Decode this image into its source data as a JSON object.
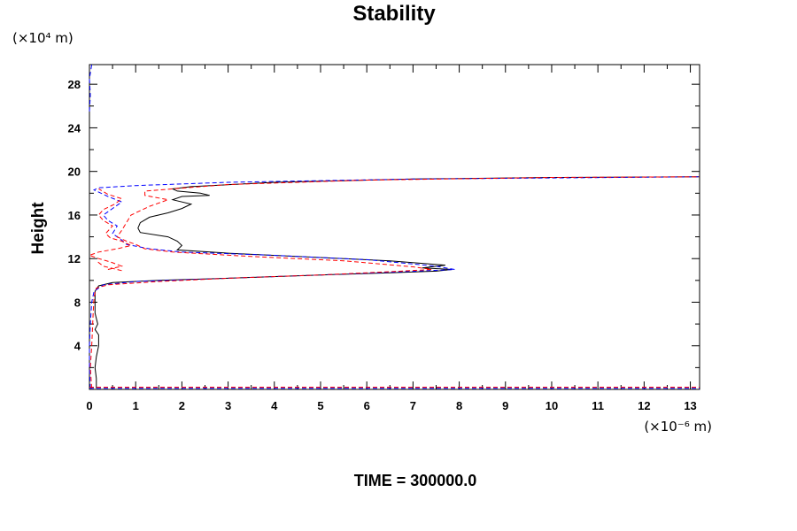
{
  "chart_data": {
    "type": "line",
    "title": "Stability",
    "xlabel": "",
    "ylabel": "Height",
    "x_unit_label": "(×10⁻⁶ m)",
    "y_unit_label": "(×10⁴ m)",
    "annotation": "TIME = 300000.0",
    "xlim": [
      0,
      13.2
    ],
    "ylim": [
      0,
      29.8
    ],
    "x_ticks": [
      0,
      1,
      2,
      3,
      4,
      5,
      6,
      7,
      8,
      9,
      10,
      11,
      12,
      13
    ],
    "y_ticks": [
      4,
      8,
      12,
      16,
      20,
      24,
      28
    ],
    "grid": false,
    "legend": "none",
    "series": [
      {
        "color": "#000000",
        "dash": "solid",
        "points": [
          [
            0.15,
            0.1
          ],
          [
            0.15,
            1
          ],
          [
            0.12,
            2
          ],
          [
            0.15,
            3
          ],
          [
            0.2,
            4
          ],
          [
            0.2,
            5
          ],
          [
            0.12,
            5.5
          ],
          [
            0.18,
            6
          ],
          [
            0.12,
            7
          ],
          [
            0.12,
            8
          ],
          [
            0.12,
            9
          ],
          [
            0.2,
            9.5
          ],
          [
            0.5,
            9.8
          ],
          [
            1.5,
            10.0
          ],
          [
            3,
            10.2
          ],
          [
            5,
            10.5
          ],
          [
            6.5,
            10.7
          ],
          [
            7.5,
            10.85
          ],
          [
            7.85,
            11.0
          ],
          [
            7.2,
            11.15
          ],
          [
            7.7,
            11.4
          ],
          [
            6.5,
            11.8
          ],
          [
            5,
            12.1
          ],
          [
            3,
            12.5
          ],
          [
            1.9,
            12.8
          ],
          [
            2,
            13.2
          ],
          [
            1.9,
            13.6
          ],
          [
            1.7,
            14
          ],
          [
            1.1,
            14.4
          ],
          [
            1.05,
            14.8
          ],
          [
            1.1,
            15.3
          ],
          [
            1.3,
            15.8
          ],
          [
            1.7,
            16.2
          ],
          [
            2.0,
            16.6
          ],
          [
            2.2,
            17
          ],
          [
            1.8,
            17.4
          ],
          [
            2.0,
            17.7
          ],
          [
            2.6,
            17.8
          ],
          [
            2.4,
            18
          ],
          [
            1.9,
            18.2
          ],
          [
            1.8,
            18.4
          ],
          [
            2.2,
            18.6
          ],
          [
            4,
            19.0
          ],
          [
            7,
            19.3
          ],
          [
            10,
            19.45
          ],
          [
            13.2,
            19.5
          ]
        ]
      },
      {
        "color": "#0000ff",
        "dash": "dashed",
        "points": [
          [
            0.02,
            0.1
          ],
          [
            0,
            2
          ],
          [
            0,
            4
          ],
          [
            0.02,
            6
          ],
          [
            0.05,
            8
          ],
          [
            0.1,
            9
          ],
          [
            0.3,
            9.6
          ],
          [
            1,
            9.9
          ],
          [
            3,
            10.2
          ],
          [
            5,
            10.5
          ],
          [
            6.8,
            10.8
          ],
          [
            7.9,
            11.0
          ],
          [
            7.5,
            11.3
          ],
          [
            6,
            11.9
          ],
          [
            4,
            12.3
          ],
          [
            2,
            12.6
          ],
          [
            1.3,
            12.9
          ],
          [
            0.8,
            13.3
          ],
          [
            0.7,
            13.7
          ],
          [
            0.5,
            14.3
          ],
          [
            0.6,
            15.0
          ],
          [
            0.4,
            15.5
          ],
          [
            0.3,
            16.0
          ],
          [
            0.5,
            16.6
          ],
          [
            0.7,
            17.2
          ],
          [
            0.4,
            17.7
          ],
          [
            0.1,
            18.3
          ],
          [
            0.2,
            18.5
          ],
          [
            1,
            18.7
          ],
          [
            3,
            19.0
          ],
          [
            7,
            19.3
          ],
          [
            13.2,
            19.5
          ]
        ]
      },
      {
        "color": "#ff0000",
        "dash": "dashed",
        "points": [
          [
            0.05,
            0.1
          ],
          [
            0.02,
            2
          ],
          [
            0.05,
            4
          ],
          [
            0.08,
            7
          ],
          [
            0.1,
            8.5
          ],
          [
            0.15,
            9.3
          ],
          [
            0.4,
            9.6
          ],
          [
            1.5,
            9.9
          ],
          [
            3,
            10.2
          ],
          [
            5,
            10.5
          ],
          [
            6.5,
            10.8
          ],
          [
            7.4,
            11.0
          ],
          [
            7.0,
            11.25
          ],
          [
            5.5,
            11.8
          ],
          [
            3.5,
            12.2
          ],
          [
            1.8,
            12.6
          ],
          [
            1.2,
            12.9
          ],
          [
            1.0,
            13.3
          ],
          [
            0.8,
            13.6
          ],
          [
            0.6,
            14.0
          ],
          [
            0.7,
            14.6
          ],
          [
            0.8,
            15.3
          ],
          [
            0.9,
            16.0
          ],
          [
            1.3,
            16.8
          ],
          [
            1.7,
            17.4
          ],
          [
            1.2,
            17.8
          ],
          [
            1.2,
            18.2
          ],
          [
            1.8,
            18.4
          ],
          [
            3,
            18.8
          ],
          [
            6,
            19.2
          ],
          [
            10,
            19.45
          ],
          [
            13.2,
            19.5
          ]
        ]
      },
      {
        "color": "#ff0000",
        "dash": "dashed",
        "points": [
          [
            0.4,
            11.0
          ],
          [
            0.7,
            11.3
          ],
          [
            0.45,
            11.7
          ],
          [
            0.2,
            12.0
          ],
          [
            0.0,
            12.3
          ],
          [
            0.2,
            12.6
          ],
          [
            0.6,
            12.9
          ],
          [
            0.9,
            13.2
          ],
          [
            0.7,
            13.6
          ],
          [
            0.45,
            13.9
          ],
          [
            0.35,
            14.3
          ],
          [
            0.5,
            15.0
          ],
          [
            0.3,
            15.5
          ],
          [
            0.2,
            16.0
          ],
          [
            0.3,
            16.5
          ],
          [
            0.55,
            17.0
          ],
          [
            0.7,
            17.5
          ],
          [
            0.4,
            17.9
          ],
          [
            0.2,
            18.4
          ]
        ]
      },
      {
        "color": "#ff0000",
        "dash": "dashed",
        "points": [
          [
            0.7,
            10.9
          ],
          [
            0.3,
            11.3
          ],
          [
            0.15,
            11.8
          ]
        ]
      },
      {
        "color": "#0000ff",
        "dash": "dashed",
        "points": [
          [
            0.0,
            25.5
          ],
          [
            0.02,
            27
          ],
          [
            0.0,
            28.5
          ],
          [
            0.05,
            29.8
          ]
        ]
      },
      {
        "color": "#ff0000",
        "dash": "dashed",
        "points": [
          [
            0.0,
            0.2
          ],
          [
            13.2,
            0.2
          ]
        ]
      },
      {
        "color": "#0000ff",
        "dash": "dashed",
        "points": [
          [
            0.0,
            0.1
          ],
          [
            13.2,
            0.1
          ]
        ]
      }
    ]
  }
}
